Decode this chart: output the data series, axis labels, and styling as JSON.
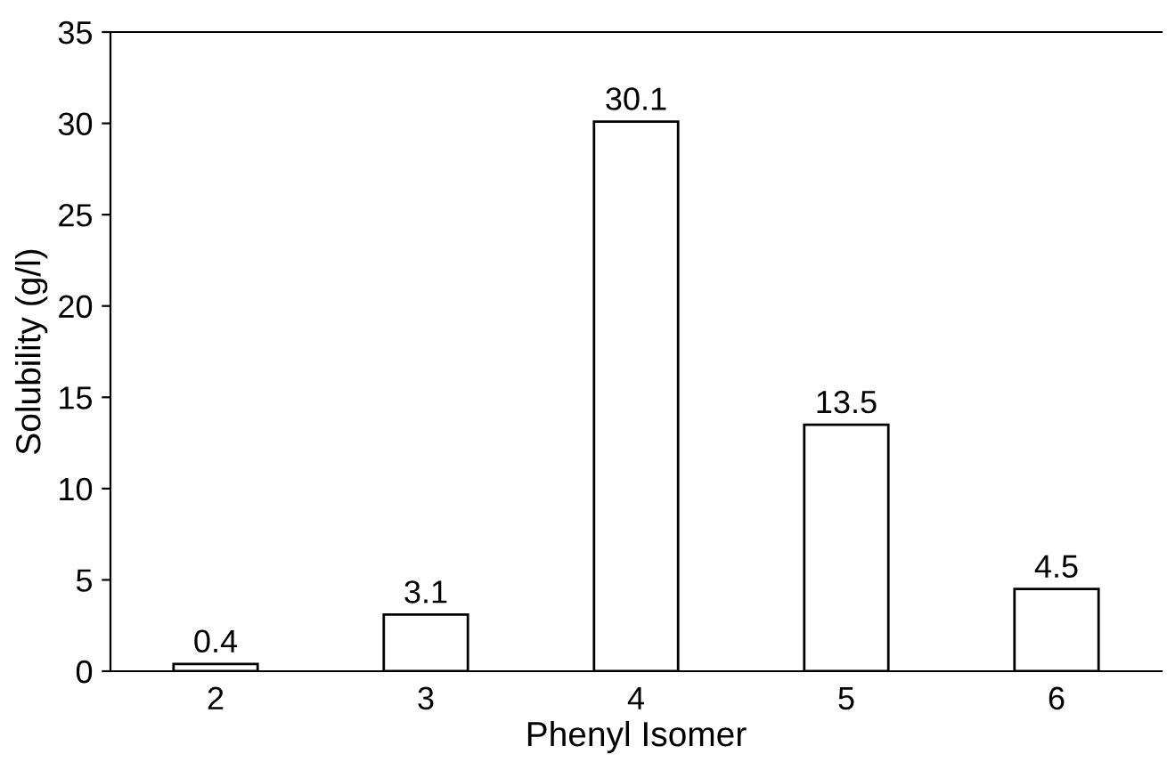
{
  "chart_data": {
    "type": "bar",
    "xlabel": "Phenyl Isomer",
    "ylabel": "Solubility (g/l)",
    "categories": [
      "2",
      "3",
      "4",
      "5",
      "6"
    ],
    "values": [
      0.4,
      3.1,
      30.1,
      13.5,
      4.5
    ],
    "color": "#ffffff",
    "ylim": [
      0,
      35
    ],
    "yticks": [
      0,
      5,
      10,
      15,
      20,
      25,
      30,
      35
    ],
    "data_labels": true,
    "grid": false,
    "legend": false
  }
}
